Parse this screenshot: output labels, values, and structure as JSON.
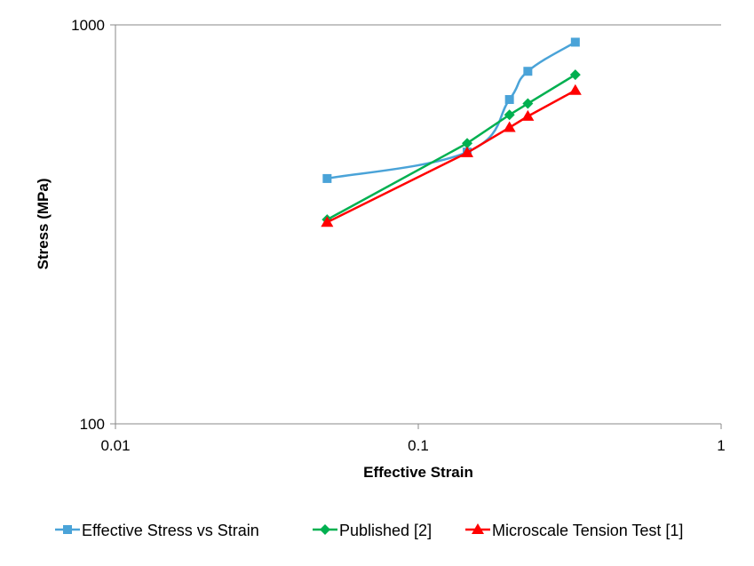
{
  "chart_data": {
    "type": "line",
    "title": "",
    "xlabel": "Effective Strain",
    "ylabel": "Stress (MPa)",
    "x_scale": "log",
    "y_scale": "log",
    "xlim": [
      0.01,
      1
    ],
    "ylim": [
      100,
      1000
    ],
    "x_tick_labels": [
      "0.01",
      "0.1",
      "1"
    ],
    "y_tick_labels": [
      "100",
      "1000"
    ],
    "grid": false,
    "legend_position": "bottom",
    "series": [
      {
        "name": "Effective Stress vs Strain",
        "color": "#4aa3d8",
        "marker": "square",
        "smooth": true,
        "x": [
          0.05,
          0.145,
          0.2,
          0.23,
          0.33
        ],
        "y": [
          412,
          480,
          650,
          765,
          905
        ]
      },
      {
        "name": "Published [2]",
        "color": "#00b050",
        "marker": "diamond",
        "smooth": false,
        "x": [
          0.05,
          0.145,
          0.2,
          0.23,
          0.33
        ],
        "y": [
          325,
          505,
          595,
          635,
          750
        ]
      },
      {
        "name": "Microscale Tension Test [1]",
        "color": "#ff0000",
        "marker": "triangle",
        "smooth": false,
        "x": [
          0.05,
          0.145,
          0.2,
          0.23,
          0.33
        ],
        "y": [
          320,
          478,
          553,
          590,
          685
        ]
      }
    ]
  }
}
